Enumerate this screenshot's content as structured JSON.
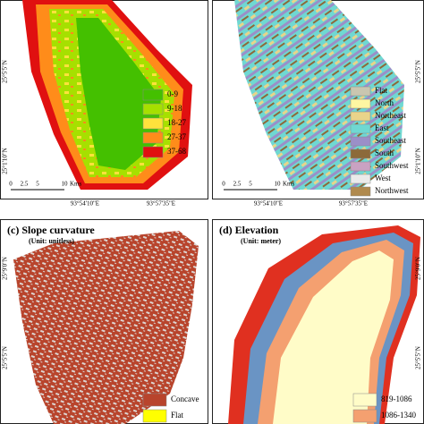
{
  "panels": [
    {
      "legend": [
        {
          "label": "0-9",
          "color": "#44c000"
        },
        {
          "label": "9-18",
          "color": "#a6e000"
        },
        {
          "label": "18-27",
          "color": "#ffe23c"
        },
        {
          "label": "27-37",
          "color": "#ff8c1a"
        },
        {
          "label": "37-68",
          "color": "#e01010"
        }
      ],
      "lat_labels": [
        "25°5'5\"N",
        "25°1'10\"N"
      ],
      "lon_labels": [
        "93°54'10\"E",
        "93°57'35\"E"
      ],
      "scale_labels": [
        "0",
        "2.5",
        "5",
        "10",
        "Kms"
      ]
    },
    {
      "legend": [
        {
          "label": "Flat",
          "color": "#c9c6b0"
        },
        {
          "label": "North",
          "color": "#fff6a2"
        },
        {
          "label": "Northeast",
          "color": "#e9d48a"
        },
        {
          "label": "East",
          "color": "#6fd8d2"
        },
        {
          "label": "Southeast",
          "color": "#9b8fc8"
        },
        {
          "label": "South",
          "color": "#8c6a3a"
        },
        {
          "label": "Southwest",
          "color": "#c9a2c2"
        },
        {
          "label": "West",
          "color": "#eaeaea"
        },
        {
          "label": "Northwest",
          "color": "#b08a4e"
        }
      ],
      "lat_labels": [
        "25°5'5\"N",
        "25°1'10\"N"
      ],
      "lon_labels": [
        "93°54'10\"E",
        "93°57'35\"E"
      ],
      "scale_labels": [
        "0",
        "2.5",
        "5",
        "10",
        "Kms"
      ]
    },
    {
      "title": "(c) Slope curvature",
      "unit": "(Unit: unitless)",
      "legend": [
        {
          "label": "Concave",
          "color": "#b8442c"
        },
        {
          "label": "Flat",
          "color": "#ffff00"
        }
      ],
      "lat_labels": [
        "25°9'0\"N",
        "25°5'5\"N"
      ]
    },
    {
      "title": "(d) Elevation",
      "unit": "(Unit: meter)",
      "legend": [
        {
          "label": "819-1086",
          "color": "#fffcc8"
        },
        {
          "label": "1086-1340",
          "color": "#f4a070"
        }
      ],
      "lat_labels": [
        "25°9'0\"N",
        "25°5'5\"N"
      ]
    }
  ]
}
